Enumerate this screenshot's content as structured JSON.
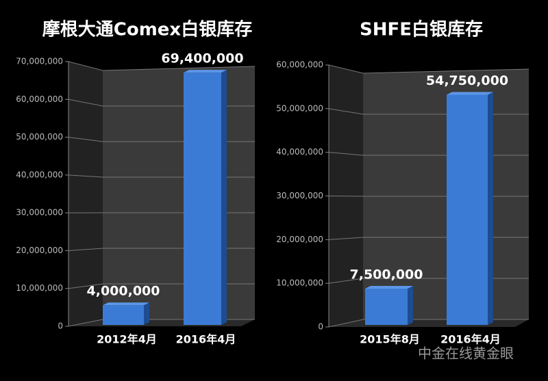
{
  "chart_data": [
    {
      "type": "bar",
      "title": "摩根大通Comex白银库存",
      "categories": [
        "2012年4月",
        "2016年4月"
      ],
      "values": [
        4000000,
        69400000
      ],
      "value_labels": [
        "4,000,000",
        "69,400,000"
      ],
      "color": "#3b7bd6",
      "ylim": [
        0,
        70000000
      ],
      "yticks": [
        0,
        {
          "value": 10000000,
          "label": "10,000,000"
        },
        {
          "value": 20000000,
          "label": "20,000,000"
        },
        {
          "value": 30000000,
          "label": "30,000,000"
        },
        {
          "value": 40000000,
          "label": "40,000,000"
        },
        {
          "value": 50000000,
          "label": "50,000,000"
        },
        {
          "value": 60000000,
          "label": "60,000,000"
        },
        {
          "value": 70000000,
          "label": "70,000,000"
        }
      ],
      "grid": true
    },
    {
      "type": "bar",
      "title": "SHFE白银库存",
      "categories": [
        "2015年8月",
        "2016年4月"
      ],
      "values": [
        7500000,
        54750000
      ],
      "value_labels": [
        "7,500,000",
        "54,750,000"
      ],
      "color": "#3b7bd6",
      "ylim": [
        0,
        60000000
      ],
      "yticks": [
        0,
        {
          "value": 10000000,
          "label": "10,000,000"
        },
        {
          "value": 20000000,
          "label": "20,000,000"
        },
        {
          "value": 30000000,
          "label": "30,000,000"
        },
        {
          "value": 40000000,
          "label": "40,000,000"
        },
        {
          "value": 50000000,
          "label": "50,000,000"
        },
        {
          "value": 60000000,
          "label": "60,000,000"
        }
      ],
      "grid": true
    }
  ],
  "watermark": "中金在线黄金眼"
}
